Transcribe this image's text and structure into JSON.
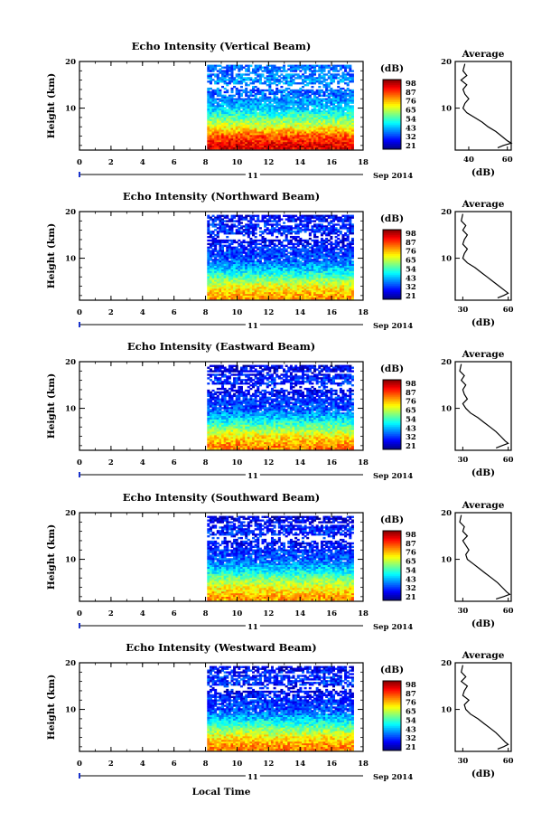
{
  "shared": {
    "date_label": "Sep 2014",
    "day_label": "11",
    "xlabel": "Local Time",
    "ylabel": "Height (km)",
    "unit_label": "(dB)",
    "avg_title": "Average",
    "avg_xlabel": "(dB)"
  },
  "chart_data": [
    {
      "type": "heatmap",
      "title": "Echo Intensity (Vertical Beam)",
      "xlabel": "Local Time",
      "ylabel": "Height (km)",
      "x_ticks": [
        "0",
        "2",
        "4",
        "6",
        "8",
        "10",
        "12",
        "14",
        "16",
        "18"
      ],
      "xlim": [
        0,
        18
      ],
      "y_ticks": [
        "20",
        "10"
      ],
      "ylim": [
        1,
        20
      ],
      "data_x_range": [
        8.1,
        17.4
      ],
      "colorbar": {
        "label": "(dB)",
        "ticks": [
          "98",
          "87",
          "76",
          "65",
          "54",
          "43",
          "32",
          "21"
        ],
        "range": [
          21,
          98
        ]
      },
      "heights_km": [
        20,
        18,
        16,
        14,
        12,
        10,
        8,
        6,
        4,
        2
      ],
      "mean_intensity_db": [
        40,
        38,
        42,
        38,
        40,
        46,
        56,
        68,
        82,
        90
      ],
      "average_profile": {
        "title": "Average",
        "xlabel": "(dB)",
        "x_ticks": [
          "40",
          "60"
        ],
        "xlim": [
          33,
          62
        ],
        "height_km": [
          19.5,
          18,
          17,
          16,
          15,
          14,
          13,
          12,
          11,
          10,
          9,
          8,
          7,
          6,
          5,
          4,
          3,
          2.5,
          2,
          1.5
        ],
        "intensity_db": [
          38,
          37,
          39,
          36,
          39,
          37,
          38,
          40,
          38,
          37,
          39,
          43,
          47,
          50,
          54,
          57,
          60,
          62,
          58,
          55
        ]
      }
    },
    {
      "type": "heatmap",
      "title": "Echo Intensity (Northward Beam)",
      "xlabel": "Local Time",
      "ylabel": "Height (km)",
      "x_ticks": [
        "0",
        "2",
        "4",
        "6",
        "8",
        "10",
        "12",
        "14",
        "16",
        "18"
      ],
      "xlim": [
        0,
        18
      ],
      "y_ticks": [
        "20",
        "10"
      ],
      "ylim": [
        1,
        20
      ],
      "data_x_range": [
        8.1,
        17.4
      ],
      "colorbar": {
        "label": "(dB)",
        "ticks": [
          "98",
          "87",
          "76",
          "65",
          "54",
          "43",
          "32",
          "21"
        ],
        "range": [
          21,
          98
        ]
      },
      "heights_km": [
        20,
        18,
        16,
        14,
        12,
        10,
        8,
        6,
        4,
        2
      ],
      "mean_intensity_db": [
        28,
        32,
        34,
        30,
        34,
        36,
        44,
        56,
        68,
        76
      ],
      "average_profile": {
        "title": "Average",
        "xlabel": "(dB)",
        "x_ticks": [
          "30",
          "60"
        ],
        "xlim": [
          25,
          62
        ],
        "height_km": [
          19.5,
          18,
          17,
          16,
          15,
          14,
          13,
          12,
          11,
          10,
          9,
          8,
          7,
          6,
          5,
          4,
          3,
          2.5,
          2,
          1.5
        ],
        "intensity_db": [
          30,
          29,
          32,
          30,
          33,
          31,
          30,
          33,
          31,
          30,
          33,
          38,
          42,
          46,
          50,
          54,
          58,
          60,
          57,
          53
        ]
      }
    },
    {
      "type": "heatmap",
      "title": "Echo Intensity (Eastward Beam)",
      "xlabel": "Local Time",
      "ylabel": "Height (km)",
      "x_ticks": [
        "0",
        "2",
        "4",
        "6",
        "8",
        "10",
        "12",
        "14",
        "16",
        "18"
      ],
      "xlim": [
        0,
        18
      ],
      "y_ticks": [
        "20",
        "10"
      ],
      "ylim": [
        1,
        20
      ],
      "data_x_range": [
        8.1,
        17.4
      ],
      "colorbar": {
        "label": "(dB)",
        "ticks": [
          "98",
          "87",
          "76",
          "65",
          "54",
          "43",
          "32",
          "21"
        ],
        "range": [
          21,
          98
        ]
      },
      "heights_km": [
        20,
        18,
        16,
        14,
        12,
        10,
        8,
        6,
        4,
        2
      ],
      "mean_intensity_db": [
        26,
        30,
        34,
        30,
        34,
        36,
        46,
        58,
        70,
        78
      ],
      "average_profile": {
        "title": "Average",
        "xlabel": "(dB)",
        "x_ticks": [
          "30",
          "60"
        ],
        "xlim": [
          25,
          62
        ],
        "height_km": [
          19.5,
          18,
          17,
          16,
          15,
          14,
          13,
          12,
          11,
          10,
          9,
          8,
          7,
          6,
          5,
          4,
          3,
          2.5,
          2,
          1.5
        ],
        "intensity_db": [
          29,
          28,
          31,
          29,
          32,
          30,
          31,
          33,
          30,
          32,
          35,
          40,
          44,
          48,
          52,
          55,
          58,
          60,
          56,
          52
        ]
      }
    },
    {
      "type": "heatmap",
      "title": "Echo Intensity (Southward Beam)",
      "xlabel": "Local Time",
      "ylabel": "Height (km)",
      "x_ticks": [
        "0",
        "2",
        "4",
        "6",
        "8",
        "10",
        "12",
        "14",
        "16",
        "18"
      ],
      "xlim": [
        0,
        18
      ],
      "y_ticks": [
        "20",
        "10"
      ],
      "ylim": [
        1,
        20
      ],
      "data_x_range": [
        8.1,
        17.4
      ],
      "colorbar": {
        "label": "(dB)",
        "ticks": [
          "98",
          "87",
          "76",
          "65",
          "54",
          "43",
          "32",
          "21"
        ],
        "range": [
          21,
          98
        ]
      },
      "heights_km": [
        20,
        18,
        16,
        14,
        12,
        10,
        8,
        6,
        4,
        2
      ],
      "mean_intensity_db": [
        26,
        30,
        34,
        30,
        34,
        38,
        46,
        58,
        68,
        76
      ],
      "average_profile": {
        "title": "Average",
        "xlabel": "(dB)",
        "x_ticks": [
          "30",
          "60"
        ],
        "xlim": [
          25,
          62
        ],
        "height_km": [
          19.5,
          18,
          17,
          16,
          15,
          14,
          13,
          12,
          11,
          10,
          9,
          8,
          7,
          6,
          5,
          4,
          3,
          2.5,
          2,
          1.5
        ],
        "intensity_db": [
          29,
          28,
          31,
          30,
          33,
          30,
          32,
          34,
          32,
          33,
          37,
          41,
          45,
          49,
          53,
          56,
          59,
          61,
          57,
          52
        ]
      }
    },
    {
      "type": "heatmap",
      "title": "Echo Intensity (Westward Beam)",
      "xlabel": "Local Time",
      "ylabel": "Height (km)",
      "x_ticks": [
        "0",
        "2",
        "4",
        "6",
        "8",
        "10",
        "12",
        "14",
        "16",
        "18"
      ],
      "xlim": [
        0,
        18
      ],
      "y_ticks": [
        "20",
        "10"
      ],
      "ylim": [
        1,
        20
      ],
      "data_x_range": [
        8.1,
        17.4
      ],
      "colorbar": {
        "label": "(dB)",
        "ticks": [
          "98",
          "87",
          "76",
          "65",
          "54",
          "43",
          "32",
          "21"
        ],
        "range": [
          21,
          98
        ]
      },
      "heights_km": [
        20,
        18,
        16,
        14,
        12,
        10,
        8,
        6,
        4,
        2
      ],
      "mean_intensity_db": [
        26,
        32,
        34,
        30,
        34,
        36,
        46,
        58,
        70,
        78
      ],
      "average_profile": {
        "title": "Average",
        "xlabel": "(dB)",
        "x_ticks": [
          "30",
          "60"
        ],
        "xlim": [
          25,
          62
        ],
        "height_km": [
          19.5,
          18,
          17,
          16,
          15,
          14,
          13,
          12,
          11,
          10,
          9,
          8,
          7,
          6,
          5,
          4,
          3,
          2.5,
          2,
          1.5
        ],
        "intensity_db": [
          30,
          29,
          32,
          29,
          33,
          31,
          30,
          34,
          31,
          32,
          35,
          40,
          44,
          48,
          52,
          55,
          58,
          60,
          57,
          53
        ]
      }
    }
  ]
}
